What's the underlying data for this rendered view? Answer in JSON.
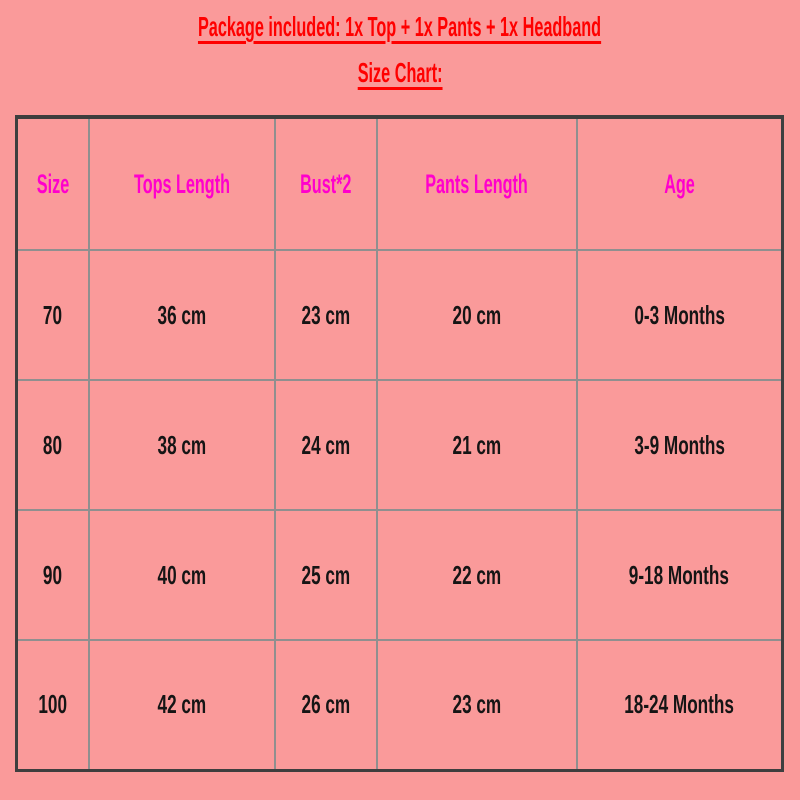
{
  "page": {
    "background_color": "#fa9a9a",
    "accent_red": "#ff0000",
    "header_magenta": "#ff00cc",
    "grid_gray": "#8f8f8f",
    "outer_border_dark": "#3e3e3e",
    "title": "Package included: 1x Top + 1x Pants + 1x Headband",
    "subtitle": "Size Chart:"
  },
  "chart_data": {
    "type": "table",
    "title": "Size Chart:",
    "columns": [
      "Size",
      "Tops Length",
      "Bust*2",
      "Pants Length",
      "Age"
    ],
    "rows": [
      [
        "70",
        "36 cm",
        "23 cm",
        "20 cm",
        "0-3 Months"
      ],
      [
        "80",
        "38 cm",
        "24 cm",
        "21 cm",
        "3-9 Months"
      ],
      [
        "90",
        "40 cm",
        "25 cm",
        "22 cm",
        "9-18 Months"
      ],
      [
        "100",
        "42 cm",
        "26 cm",
        "23 cm",
        "18-24 Months"
      ]
    ],
    "layout_hints": {
      "header_text_color": "#ff00cc",
      "body_text_color": "#151515",
      "grid": "on",
      "background": "#fa9a9a"
    }
  }
}
